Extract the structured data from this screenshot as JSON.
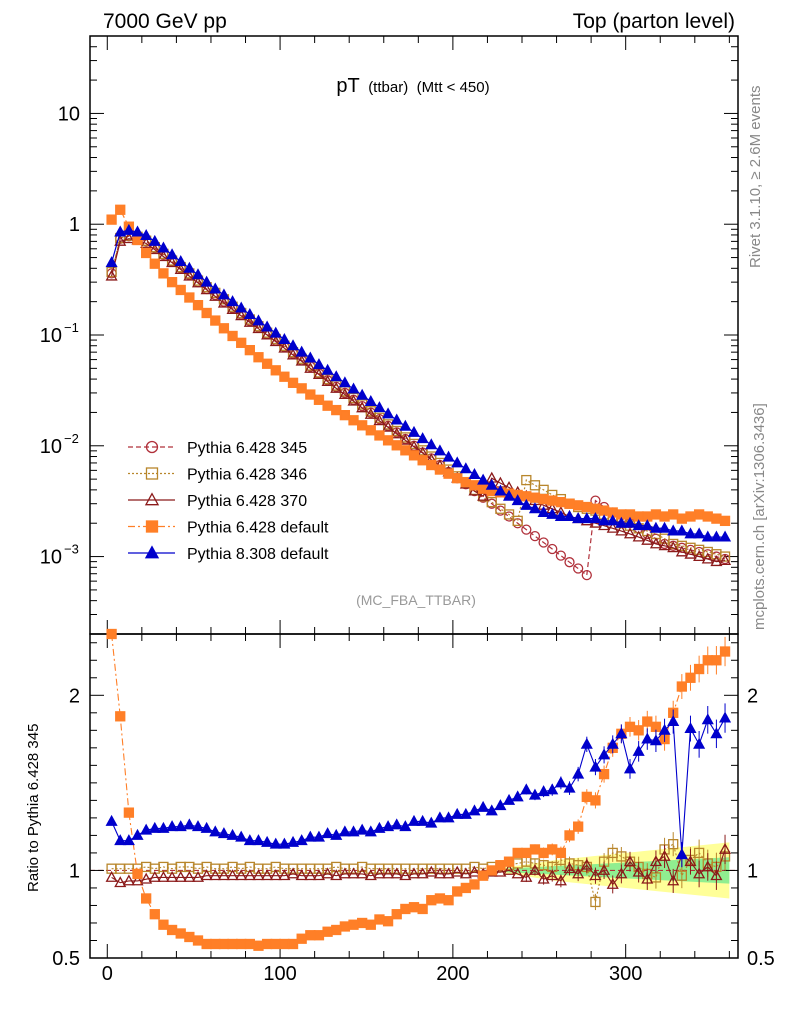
{
  "header": {
    "left": "7000 GeV pp",
    "right": "Top (parton level)"
  },
  "side_labels": {
    "rivet": "Rivet 3.1.10, ≥ 2.6M events",
    "mcplots": "mcplots.cern.ch [arXiv:1306.3436]"
  },
  "colors": {
    "p345": "#b0303a",
    "p346": "#b8862b",
    "p370": "#8b1a1a",
    "p6def": "#ff7f27",
    "p8def": "#0000cc",
    "band_inner": "#90ee90",
    "band_outer": "#ffff99"
  },
  "chart_data": [
    {
      "type": "scatter",
      "panel": "main",
      "title_main": "pT",
      "title_sub": "(ttbar)",
      "title_cut": "(Mtt < 450)",
      "annotation": "(MC_FBA_TTBAR)",
      "yscale": "log",
      "xlim": [
        -10,
        365
      ],
      "ylim": [
        0.0002,
        50
      ],
      "grid": false,
      "legend_position": "lower-left",
      "y_ticks": [
        {
          "v": 10,
          "label": "10",
          "sup": ""
        },
        {
          "v": 1,
          "label": "1",
          "sup": ""
        },
        {
          "v": 0.1,
          "label": "10",
          "sup": "−1"
        },
        {
          "v": 0.01,
          "label": "10",
          "sup": "−2"
        },
        {
          "v": 0.001,
          "label": "10",
          "sup": "−3"
        }
      ],
      "x_bins": [
        2.5,
        7.5,
        12.5,
        17.5,
        22.5,
        27.5,
        32.5,
        37.5,
        42.5,
        47.5,
        52.5,
        57.5,
        62.5,
        67.5,
        72.5,
        77.5,
        82.5,
        87.5,
        92.5,
        97.5,
        102.5,
        107.5,
        112.5,
        117.5,
        122.5,
        127.5,
        132.5,
        137.5,
        142.5,
        147.5,
        152.5,
        157.5,
        162.5,
        167.5,
        172.5,
        177.5,
        182.5,
        187.5,
        192.5,
        197.5,
        202.5,
        207.5,
        212.5,
        217.5,
        222.5,
        227.5,
        232.5,
        237.5,
        242.5,
        247.5,
        252.5,
        257.5,
        262.5,
        267.5,
        272.5,
        277.5,
        282.5,
        287.5,
        292.5,
        297.5,
        302.5,
        307.5,
        312.5,
        317.5,
        322.5,
        327.5,
        332.5,
        337.5,
        342.5,
        347.5,
        352.5,
        357.5
      ],
      "series": [
        {
          "name": "Pythia 6.428 345",
          "key": "p345",
          "marker": "circle-open",
          "line": "dashed",
          "values": [
            0.36,
            0.74,
            0.78,
            0.76,
            0.7,
            0.61,
            0.53,
            0.46,
            0.4,
            0.35,
            0.3,
            0.26,
            0.23,
            0.2,
            0.175,
            0.153,
            0.134,
            0.117,
            0.102,
            0.089,
            0.078,
            0.068,
            0.059,
            0.052,
            0.045,
            0.039,
            0.034,
            0.03,
            0.026,
            0.0228,
            0.0199,
            0.0174,
            0.0151,
            0.0132,
            0.0115,
            0.01,
            0.0087,
            0.0077,
            0.0067,
            0.0058,
            0.0051,
            0.0045,
            0.0039,
            0.0034,
            0.003,
            0.0026,
            0.0023,
            0.002,
            0.00175,
            0.00153,
            0.00134,
            0.00117,
            0.00102,
            0.00089,
            0.00078,
            0.00068,
            0.0032,
            0.0028,
            0.0025,
            0.0022,
            0.002,
            0.0018,
            0.0016,
            0.00145,
            0.0013,
            0.00125,
            0.0012,
            0.00115,
            0.0011,
            0.00105,
            0.001,
            0.00095
          ]
        },
        {
          "name": "Pythia 6.428 346",
          "key": "p346",
          "marker": "square-open",
          "line": "dotted",
          "values": [
            0.37,
            0.75,
            0.79,
            0.77,
            0.71,
            0.62,
            0.54,
            0.47,
            0.41,
            0.36,
            0.31,
            0.27,
            0.24,
            0.21,
            0.18,
            0.158,
            0.138,
            0.12,
            0.105,
            0.092,
            0.08,
            0.07,
            0.061,
            0.053,
            0.046,
            0.04,
            0.035,
            0.031,
            0.027,
            0.0236,
            0.0205,
            0.0179,
            0.0156,
            0.0136,
            0.0119,
            0.0104,
            0.0091,
            0.008,
            0.007,
            0.0061,
            0.0053,
            0.0046,
            0.004,
            0.0035,
            0.0031,
            0.0027,
            0.0024,
            0.0021,
            0.0049,
            0.0044,
            0.004,
            0.0036,
            0.0033,
            0.003,
            0.0028,
            0.0027,
            0.0026,
            0.0024,
            0.0022,
            0.002,
            0.0019,
            0.0018,
            0.0017,
            0.0016,
            0.00145,
            0.0013,
            0.00125,
            0.0012,
            0.00115,
            0.0011,
            0.00105,
            0.001
          ]
        },
        {
          "name": "Pythia 6.428 370",
          "key": "p370",
          "marker": "triangle-open",
          "line": "solid",
          "values": [
            0.34,
            0.7,
            0.74,
            0.72,
            0.67,
            0.59,
            0.51,
            0.45,
            0.39,
            0.34,
            0.295,
            0.256,
            0.223,
            0.194,
            0.17,
            0.149,
            0.13,
            0.114,
            0.1,
            0.087,
            0.076,
            0.066,
            0.058,
            0.05,
            0.044,
            0.038,
            0.033,
            0.029,
            0.0253,
            0.022,
            0.0192,
            0.0168,
            0.0147,
            0.0128,
            0.0112,
            0.0098,
            0.0086,
            0.0075,
            0.0066,
            0.0058,
            0.0051,
            0.0045,
            0.0039,
            0.0035,
            0.0051,
            0.0046,
            0.0042,
            0.0038,
            0.0035,
            0.0032,
            0.0029,
            0.0027,
            0.0025,
            0.0023,
            0.0022,
            0.0021,
            0.002,
            0.0019,
            0.0018,
            0.0017,
            0.0016,
            0.0015,
            0.0014,
            0.0013,
            0.00125,
            0.0012,
            0.0011,
            0.00105,
            0.001,
            0.00095,
            0.0009,
            0.00092
          ]
        },
        {
          "name": "Pythia 6.428 default",
          "key": "p6def",
          "marker": "square-filled",
          "line": "dashdot",
          "values": [
            1.1,
            1.35,
            0.95,
            0.72,
            0.55,
            0.44,
            0.36,
            0.3,
            0.255,
            0.218,
            0.186,
            0.158,
            0.135,
            0.115,
            0.098,
            0.085,
            0.073,
            0.063,
            0.055,
            0.048,
            0.042,
            0.037,
            0.033,
            0.029,
            0.026,
            0.023,
            0.021,
            0.0189,
            0.017,
            0.0153,
            0.0138,
            0.0124,
            0.0112,
            0.0101,
            0.0091,
            0.0082,
            0.0074,
            0.0067,
            0.0061,
            0.0056,
            0.0051,
            0.0047,
            0.0044,
            0.0041,
            0.0039,
            0.0038,
            0.0037,
            0.0036,
            0.0035,
            0.0034,
            0.0033,
            0.0032,
            0.0031,
            0.003,
            0.0029,
            0.0028,
            0.0027,
            0.0026,
            0.0025,
            0.0024,
            0.0024,
            0.0023,
            0.0023,
            0.0024,
            0.0023,
            0.0024,
            0.0022,
            0.0023,
            0.0024,
            0.0023,
            0.0022,
            0.0021
          ]
        },
        {
          "name": "Pythia 8.308 default",
          "key": "p8def",
          "marker": "triangle-filled",
          "line": "solid",
          "values": [
            0.45,
            0.85,
            0.88,
            0.85,
            0.79,
            0.7,
            0.61,
            0.53,
            0.46,
            0.4,
            0.35,
            0.3,
            0.26,
            0.23,
            0.2,
            0.175,
            0.153,
            0.134,
            0.118,
            0.104,
            0.091,
            0.08,
            0.07,
            0.062,
            0.054,
            0.048,
            0.042,
            0.037,
            0.0325,
            0.0286,
            0.0251,
            0.0221,
            0.0194,
            0.0171,
            0.015,
            0.0132,
            0.0116,
            0.0102,
            0.009,
            0.0079,
            0.007,
            0.0062,
            0.0055,
            0.0049,
            0.0044,
            0.0039,
            0.0035,
            0.0032,
            0.0029,
            0.0027,
            0.0025,
            0.0024,
            0.0023,
            0.0023,
            0.0022,
            0.0022,
            0.0022,
            0.0021,
            0.0021,
            0.002,
            0.002,
            0.0019,
            0.0019,
            0.0018,
            0.0018,
            0.0017,
            0.0017,
            0.0016,
            0.0016,
            0.0015,
            0.0015,
            0.0015
          ]
        }
      ]
    },
    {
      "type": "scatter",
      "panel": "ratio",
      "ylabel": "Ratio to Pythia 6.428 345",
      "xlim": [
        -10,
        365
      ],
      "ylim": [
        0.5,
        2.35
      ],
      "x_ticks": [
        0,
        100,
        200,
        300
      ],
      "y_ticks": [
        {
          "v": 0.5,
          "label": "0.5"
        },
        {
          "v": 1,
          "label": "1"
        },
        {
          "v": 2,
          "label": "2"
        }
      ],
      "band": {
        "x": [
          230,
          240,
          250,
          260,
          270,
          280,
          290,
          300,
          310,
          320,
          330,
          340,
          350,
          360
        ],
        "inner_half_width": [
          0.01,
          0.015,
          0.02,
          0.025,
          0.03,
          0.035,
          0.04,
          0.045,
          0.05,
          0.055,
          0.06,
          0.065,
          0.07,
          0.075
        ],
        "outer_half_width": [
          0.02,
          0.03,
          0.045,
          0.06,
          0.07,
          0.08,
          0.09,
          0.1,
          0.11,
          0.12,
          0.13,
          0.14,
          0.15,
          0.16
        ]
      },
      "series": [
        {
          "name": "Pythia 6.428 346",
          "key": "p346",
          "marker": "square-open",
          "values": [
            1.01,
            1.01,
            1.01,
            1.01,
            1.02,
            1.01,
            1.02,
            1.01,
            1.02,
            1.02,
            1.01,
            1.02,
            1.01,
            1.01,
            1.02,
            1.01,
            1.02,
            1.01,
            1.01,
            1.02,
            1.01,
            1.01,
            1.01,
            1.01,
            1.01,
            1.01,
            1.02,
            1.01,
            1.01,
            1.02,
            1.01,
            1.01,
            1.01,
            1.01,
            1.01,
            1.01,
            1.01,
            1.01,
            1.01,
            1.01,
            1.01,
            1.01,
            1.02,
            1.01,
            1.02,
            1.02,
            1.03,
            1.04,
            1.05,
            1.04,
            1.03,
            1.02,
            1.06,
            1.04,
            1.03,
            1.02,
            0.82,
            1.05,
            1.1,
            1.08,
            1.05,
            1.02,
            0.98,
            0.96,
            1.12,
            1.15,
            0.97,
            1.06,
            1.1,
            1.04,
            1.02,
            1.08
          ]
        },
        {
          "name": "Pythia 6.428 370",
          "key": "p370",
          "marker": "triangle-open",
          "values": [
            0.96,
            0.93,
            0.94,
            0.94,
            0.95,
            0.96,
            0.96,
            0.96,
            0.96,
            0.96,
            0.96,
            0.97,
            0.97,
            0.97,
            0.97,
            0.97,
            0.97,
            0.97,
            0.97,
            0.97,
            0.97,
            0.98,
            0.97,
            0.97,
            0.97,
            0.98,
            0.97,
            0.98,
            0.98,
            0.98,
            0.97,
            0.98,
            0.98,
            0.98,
            0.97,
            0.98,
            0.98,
            0.99,
            0.98,
            0.98,
            0.99,
            0.98,
            0.99,
            0.98,
            0.99,
            0.99,
            1.0,
            0.98,
            0.96,
            1.0,
            0.95,
            0.97,
            0.94,
            1.01,
            0.98,
            1.03,
            0.97,
            1.0,
            0.92,
            0.98,
            1.05,
            0.99,
            0.95,
            1.05,
            1.08,
            0.94,
            1.09,
            1.05,
            0.98,
            1.02,
            0.97,
            1.12
          ]
        },
        {
          "name": "Pythia 6.428 default",
          "key": "p6def",
          "marker": "square-filled",
          "values": [
            2.35,
            1.88,
            1.33,
            0.98,
            0.84,
            0.75,
            0.69,
            0.66,
            0.64,
            0.62,
            0.6,
            0.58,
            0.58,
            0.58,
            0.58,
            0.58,
            0.58,
            0.57,
            0.58,
            0.58,
            0.58,
            0.58,
            0.61,
            0.63,
            0.63,
            0.65,
            0.66,
            0.68,
            0.69,
            0.7,
            0.69,
            0.72,
            0.71,
            0.75,
            0.78,
            0.79,
            0.78,
            0.83,
            0.84,
            0.83,
            0.88,
            0.9,
            0.92,
            0.97,
            1.0,
            1.03,
            1.05,
            1.1,
            1.1,
            1.12,
            1.1,
            1.12,
            1.1,
            1.2,
            1.25,
            1.42,
            1.4,
            1.55,
            1.7,
            1.78,
            1.82,
            1.8,
            1.85,
            1.82,
            1.75,
            1.9,
            2.05,
            2.1,
            2.15,
            2.2,
            2.2,
            2.25
          ]
        },
        {
          "name": "Pythia 8.308 default",
          "key": "p8def",
          "marker": "triangle-filled",
          "values": [
            1.28,
            1.17,
            1.17,
            1.2,
            1.23,
            1.24,
            1.24,
            1.25,
            1.25,
            1.26,
            1.25,
            1.24,
            1.22,
            1.21,
            1.2,
            1.19,
            1.17,
            1.17,
            1.16,
            1.15,
            1.15,
            1.16,
            1.17,
            1.19,
            1.19,
            1.21,
            1.2,
            1.22,
            1.22,
            1.23,
            1.22,
            1.24,
            1.25,
            1.26,
            1.25,
            1.28,
            1.28,
            1.27,
            1.3,
            1.3,
            1.32,
            1.32,
            1.34,
            1.36,
            1.34,
            1.37,
            1.4,
            1.42,
            1.46,
            1.43,
            1.45,
            1.46,
            1.5,
            1.47,
            1.55,
            1.72,
            1.59,
            1.66,
            1.72,
            1.78,
            1.58,
            1.68,
            1.75,
            1.74,
            1.8,
            1.85,
            1.09,
            1.81,
            1.72,
            1.86,
            1.78,
            1.87
          ]
        }
      ]
    }
  ]
}
